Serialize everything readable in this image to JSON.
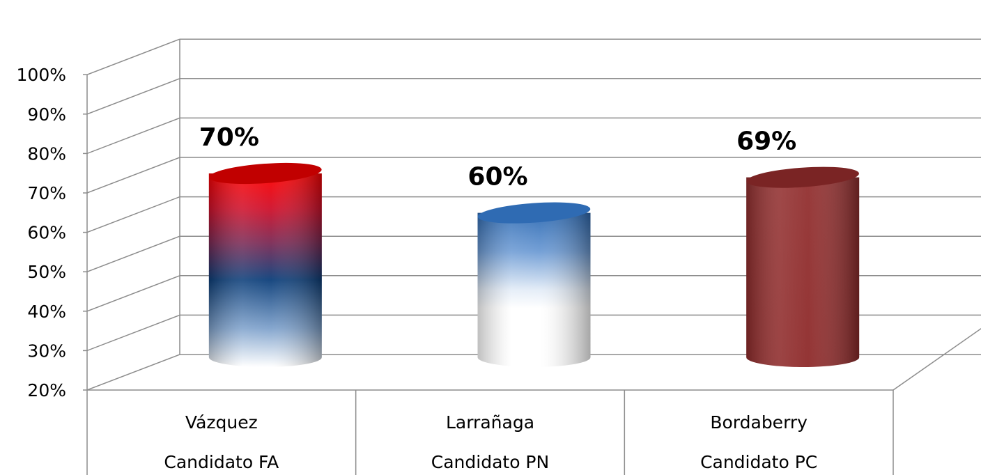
{
  "chart_data": {
    "type": "bar",
    "style": "3d-cylinder",
    "categories": [
      [
        "Vázquez",
        "Candidato FA"
      ],
      [
        "Larrañaga",
        "Candidato PN"
      ],
      [
        "Bordaberry",
        "Candidato PC"
      ]
    ],
    "values": [
      70,
      60,
      69
    ],
    "data_labels": [
      "70%",
      "60%",
      "69%"
    ],
    "y_ticks": [
      "20%",
      "30%",
      "40%",
      "50%",
      "60%",
      "70%",
      "80%",
      "90%",
      "100%"
    ],
    "ylim": [
      20,
      100
    ],
    "grid": true,
    "colors": {
      "bar1_top": "#ff0000",
      "bar1_mid": "#0d3f7a",
      "bar2_top": "#2a6ab8",
      "bar3": "#8e2a2a",
      "grid": "#8c8c8c"
    }
  }
}
